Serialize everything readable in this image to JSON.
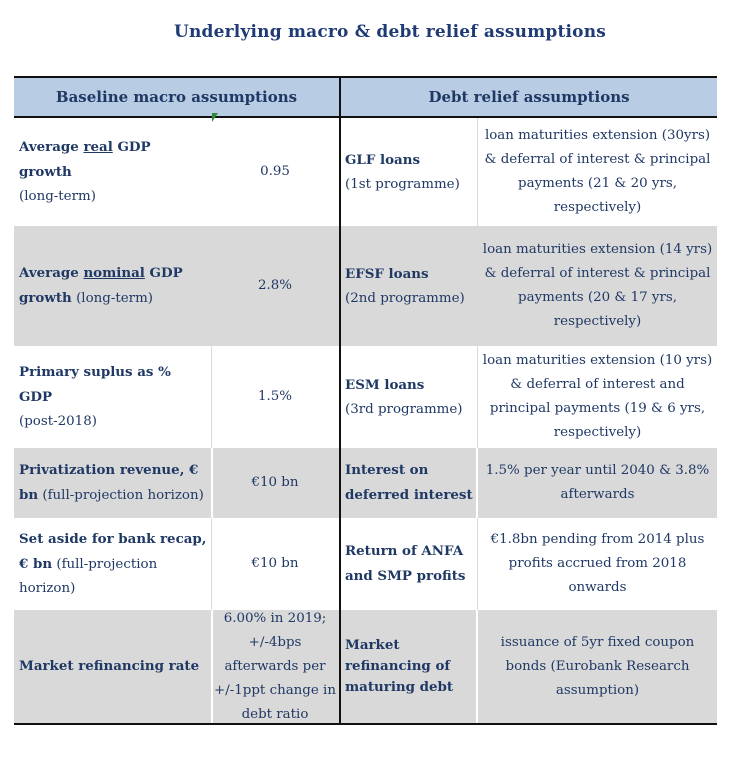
{
  "title": "Underlying macro & debt relief assumptions",
  "headers": {
    "left": "Baseline macro assumptions",
    "right": "Debt relief assumptions"
  },
  "rows": [
    {
      "macro_bold_a": "Average ",
      "macro_underline": "real",
      "macro_bold_b": " GDP growth",
      "macro_note": "(long-term)",
      "macro_value": "0.95",
      "debt_bold": "GLF loans",
      "debt_note": "(1st programme)",
      "debt_value": "loan maturities extension (30yrs) & deferral of interest & principal payments  (21 & 20 yrs, respectively)"
    },
    {
      "macro_bold_a": "Average ",
      "macro_underline": "nominal",
      "macro_bold_b": " GDP growth",
      "macro_note": "(long-term)",
      "macro_value": "2.8%",
      "debt_bold": "EFSF loans",
      "debt_note": "(2nd programme)",
      "debt_value": "loan maturities extension (14 yrs) & deferral of interest & principal payments (20 & 17 yrs, respectively)"
    },
    {
      "macro_bold": "Primary suplus as % GDP",
      "macro_note": "(post-2018)",
      "macro_value": "1.5%",
      "debt_bold": "ESM loans",
      "debt_note": "(3rd programme)",
      "debt_value": "loan maturities extension (10 yrs) & deferral of interest and principal payments (19 & 6 yrs, respectively)"
    },
    {
      "macro_bold": "Privatization revenue, € bn",
      "macro_note": "(full-projection horizon)",
      "macro_value": "€10 bn",
      "debt_bold": "Interest on deferred interest",
      "debt_value": "1.5% per year until 2040 & 3.8% afterwards"
    },
    {
      "macro_bold": "Set aside for bank recap, € bn",
      "macro_note": "(full-projection horizon)",
      "macro_value": "€10 bn",
      "debt_bold": "Return of ANFA and SMP profits",
      "debt_value": "€1.8bn pending from 2014 plus profits accrued from 2018 onwards"
    },
    {
      "macro_bold": "Market refinancing rate",
      "macro_value": "6.00% in 2019; +/-4bps afterwards per +/-1ppt change in debt ratio",
      "debt_bold": "Market refinancing of maturing debt",
      "debt_value": "issuance of 5yr fixed coupon bonds (Eurobank Research assumption)"
    }
  ]
}
